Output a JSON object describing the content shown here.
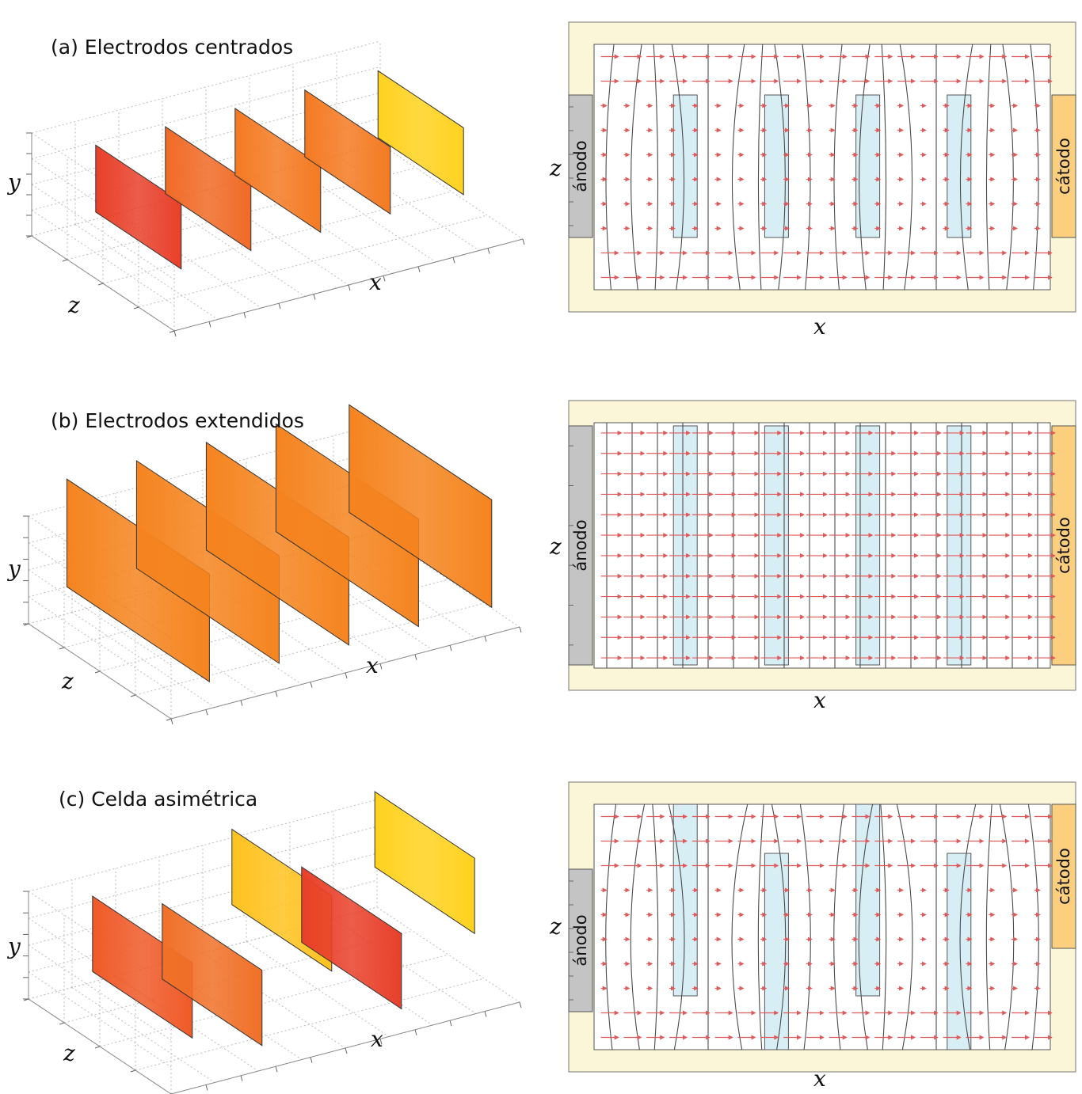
{
  "panels": [
    {
      "id": "a",
      "title": "(a)  Electrodos centrados",
      "layout": "centered",
      "axes3d": {
        "x": "x",
        "y": "y",
        "z": "z"
      },
      "axes2d": {
        "x": "x",
        "z": "z"
      },
      "anode_label": "ánodo",
      "cathode_label": "cátodo",
      "plate_colors": [
        "#e8402a",
        "#f06a26",
        "#f47a22",
        "#f47a22",
        "#ffd21f"
      ]
    },
    {
      "id": "b",
      "title": "(b)  Electrodos extendidos",
      "layout": "extended",
      "axes3d": {
        "x": "x",
        "y": "y",
        "z": "z"
      },
      "axes2d": {
        "x": "x",
        "z": "z"
      },
      "anode_label": "ánodo",
      "cathode_label": "cátodo",
      "plate_colors": [
        "#f5841f",
        "#f5841f",
        "#f5841f",
        "#f5841f",
        "#f5841f"
      ]
    },
    {
      "id": "c",
      "title": "(c)  Celda asimétrica",
      "layout": "asymmetric",
      "axes3d": {
        "x": "x",
        "y": "y",
        "z": "z"
      },
      "axes2d": {
        "x": "x",
        "z": "z"
      },
      "anode_label": "ánodo",
      "cathode_label": "cátodo",
      "plate_colors": [
        "#ef5a28",
        "#f07028",
        "#ffc21f",
        "#e8402a",
        "#ffd21f"
      ]
    }
  ],
  "colors": {
    "cell_border": "#fbf6d8",
    "anode": "#c4c4c4",
    "cathode": "#fbcf7e",
    "membrane": "#d8eef5",
    "arrow": "#e05a5a",
    "isoline": "#4a4a4a"
  }
}
